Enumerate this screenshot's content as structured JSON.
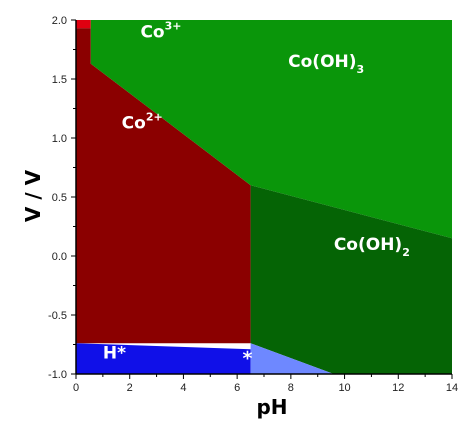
{
  "chart_data": {
    "type": "area",
    "title": "",
    "xlabel": "pH",
    "ylabel": "V / V",
    "xlim": [
      0,
      14
    ],
    "ylim": [
      -1.0,
      2.0
    ],
    "x_ticks": [
      "0",
      "2",
      "4",
      "6",
      "8",
      "10",
      "12",
      "14"
    ],
    "y_ticks": [
      "2.0",
      "1.5",
      "1.0",
      "0.5",
      "0.0",
      "-0.5",
      "-1.0"
    ],
    "colors": {
      "co3": "#e00010",
      "co2": "#8b0000",
      "cooh3": "#0a960a",
      "cooh2": "#056405",
      "hstar": "#1010e8",
      "star": "#6e88ff",
      "axis": "#000000"
    },
    "regions": [
      {
        "name": "Co3+",
        "label_main": "Co",
        "label_sup": "3+",
        "label_at": [
          2.4,
          1.85
        ],
        "font": 17,
        "polygon": [
          [
            0,
            2.0
          ],
          [
            0.55,
            2.0
          ],
          [
            0.55,
            1.93
          ],
          [
            0,
            1.93
          ]
        ]
      },
      {
        "name": "Co2+",
        "label_main": "Co",
        "label_sup": "2+",
        "label_at": [
          1.7,
          1.08
        ],
        "font": 17,
        "polygon": [
          [
            0,
            1.93
          ],
          [
            0.55,
            1.93
          ],
          [
            0.55,
            1.63
          ],
          [
            6.5,
            0.6
          ],
          [
            6.5,
            -0.74
          ],
          [
            0,
            -0.74
          ]
        ]
      },
      {
        "name": "Co(OH)3",
        "label_main": "Co(OH)",
        "label_sub": "3",
        "label_at": [
          7.9,
          1.6
        ],
        "font": 17,
        "polygon": [
          [
            0.55,
            2.0
          ],
          [
            14,
            2.0
          ],
          [
            14,
            0.15
          ],
          [
            6.5,
            0.6
          ],
          [
            0.55,
            1.63
          ]
        ]
      },
      {
        "name": "Co(OH)2",
        "label_main": "Co(OH)",
        "label_sub": "2",
        "label_at": [
          9.6,
          0.05
        ],
        "font": 17,
        "polygon": [
          [
            6.5,
            0.6
          ],
          [
            14,
            0.15
          ],
          [
            14,
            -1.0
          ],
          [
            9.6,
            -1.0
          ],
          [
            6.5,
            -0.74
          ]
        ]
      },
      {
        "name": "H*",
        "label_main": "H*",
        "label_at": [
          1.0,
          -0.87
        ],
        "font": 17,
        "polygon": [
          [
            0,
            -0.74
          ],
          [
            6.5,
            -0.79
          ],
          [
            6.5,
            -1.0
          ],
          [
            0,
            -1.0
          ]
        ]
      },
      {
        "name": "*",
        "label_main": "*",
        "label_at": [
          6.2,
          -0.92
        ],
        "font": 19,
        "polygon": [
          [
            6.5,
            -0.74
          ],
          [
            9.6,
            -1.0
          ],
          [
            6.5,
            -1.0
          ]
        ]
      }
    ],
    "grid": false,
    "legend": "none"
  }
}
